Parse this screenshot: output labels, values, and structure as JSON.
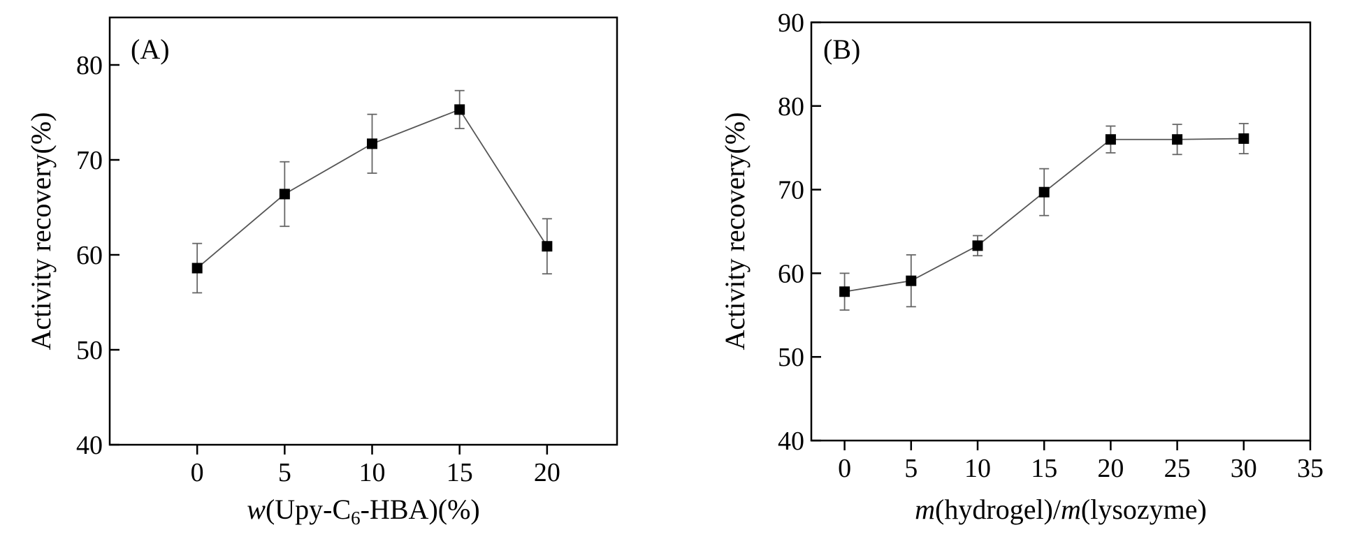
{
  "chart_data": [
    {
      "type": "line",
      "panel_label": "(A)",
      "title": "",
      "xlabel": {
        "prefix_italic": "w",
        "main": "(Upy-C",
        "subscript": "6",
        "suffix": "-HBA)(%)"
      },
      "ylabel": "Activity recovery(%)",
      "xlim": [
        -5,
        24
      ],
      "ylim": [
        40,
        85
      ],
      "xticks": [
        0,
        5,
        10,
        15,
        20
      ],
      "xtick_labels": [
        "0",
        "5",
        "10",
        "15",
        "20"
      ],
      "yticks": [
        40,
        50,
        60,
        70,
        80
      ],
      "ytick_labels": [
        "40",
        "50",
        "60",
        "70",
        "80"
      ],
      "grid": false,
      "series": [
        {
          "name": "Activity recovery",
          "x": [
            0,
            5,
            10,
            15,
            20
          ],
          "y": [
            58.6,
            66.4,
            71.7,
            75.3,
            60.9
          ],
          "yerr": [
            2.6,
            3.4,
            3.1,
            2.0,
            2.9
          ],
          "color": "#000000",
          "line_color": "#555555",
          "marker": "square"
        }
      ]
    },
    {
      "type": "line",
      "panel_label": "(B)",
      "title": "",
      "xlabel": {
        "a_italic": "m",
        "a": "(hydrogel)/",
        "b_italic": "m",
        "b": "(lysozyme)"
      },
      "ylabel": "Activity recovery(%)",
      "xlim": [
        -2.5,
        35
      ],
      "ylim": [
        40,
        90
      ],
      "xticks": [
        0,
        5,
        10,
        15,
        20,
        25,
        30,
        35
      ],
      "xtick_labels": [
        "0",
        "5",
        "10",
        "15",
        "20",
        "25",
        "30",
        "35"
      ],
      "yticks": [
        40,
        50,
        60,
        70,
        80,
        90
      ],
      "ytick_labels": [
        "40",
        "50",
        "60",
        "70",
        "80",
        "90"
      ],
      "grid": false,
      "series": [
        {
          "name": "Activity recovery",
          "x": [
            0,
            5,
            10,
            15,
            20,
            25,
            30
          ],
          "y": [
            57.8,
            59.1,
            63.3,
            69.7,
            76.0,
            76.0,
            76.1
          ],
          "yerr": [
            2.2,
            3.1,
            1.2,
            2.8,
            1.6,
            1.8,
            1.8
          ],
          "color": "#000000",
          "line_color": "#555555",
          "marker": "square"
        }
      ]
    }
  ]
}
